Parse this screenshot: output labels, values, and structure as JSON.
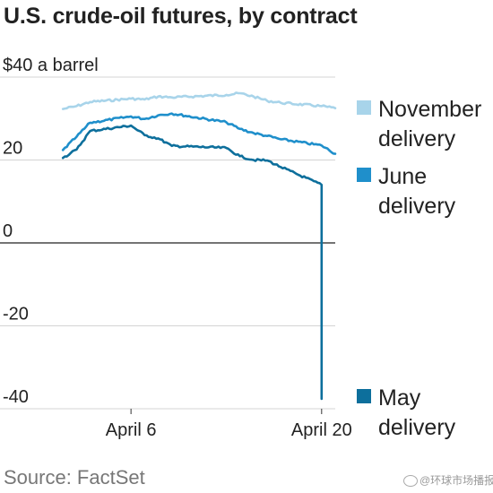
{
  "title": "U.S. crude-oil futures, by contract",
  "source": "Source: FactSet",
  "watermark": "@环球市场播报",
  "colors": {
    "november": "#a8d4ea",
    "june": "#1f8fcb",
    "may": "#0d6f9c",
    "grid": "#d4d4d4",
    "zero": "#222222",
    "text": "#222222",
    "source": "#777777"
  },
  "legend": [
    {
      "line1": "November",
      "line2": "delivery",
      "color": "#a8d4ea"
    },
    {
      "line1": "June",
      "line2": "delivery",
      "color": "#1f8fcb"
    },
    {
      "line1": "May",
      "line2": "delivery",
      "color": "#0d6f9c"
    }
  ],
  "chart_data": {
    "type": "line",
    "title": "U.S. crude-oil futures, by contract",
    "ylabel": "",
    "xlabel": "",
    "ylim": [
      -40,
      40
    ],
    "y_ticks": [
      40,
      20,
      0,
      -20,
      -40
    ],
    "y_tick_labels": [
      "$40 a barrel",
      "20",
      "0",
      "-20",
      "-40"
    ],
    "x_ticks": [
      "2020-04-06",
      "2020-04-20"
    ],
    "x_tick_labels": [
      "April 6",
      "April 20"
    ],
    "xlim": [
      "2020-03-31",
      "2020-04-21"
    ],
    "grid": true,
    "legend_position": "right",
    "series": [
      {
        "name": "November delivery",
        "x": [
          "2020-04-01",
          "2020-04-02",
          "2020-04-03",
          "2020-04-06",
          "2020-04-07",
          "2020-04-08",
          "2020-04-09",
          "2020-04-13",
          "2020-04-14",
          "2020-04-15",
          "2020-04-16",
          "2020-04-17",
          "2020-04-20",
          "2020-04-21"
        ],
        "y": [
          32.3,
          33.0,
          34.0,
          34.8,
          34.6,
          35.3,
          35.1,
          35.7,
          36.1,
          35.3,
          34.3,
          33.8,
          33.0,
          32.5
        ]
      },
      {
        "name": "June delivery",
        "x": [
          "2020-04-01",
          "2020-04-02",
          "2020-04-03",
          "2020-04-06",
          "2020-04-07",
          "2020-04-08",
          "2020-04-09",
          "2020-04-13",
          "2020-04-14",
          "2020-04-15",
          "2020-04-16",
          "2020-04-17",
          "2020-04-20",
          "2020-04-21"
        ],
        "y": [
          22.4,
          25.6,
          29.0,
          30.5,
          29.9,
          30.8,
          31.2,
          29.1,
          27.5,
          26.5,
          25.8,
          25.0,
          23.5,
          21.5
        ]
      },
      {
        "name": "May delivery",
        "x": [
          "2020-04-01",
          "2020-04-02",
          "2020-04-03",
          "2020-04-06",
          "2020-04-07",
          "2020-04-08",
          "2020-04-09",
          "2020-04-13",
          "2020-04-14",
          "2020-04-15",
          "2020-04-16",
          "2020-04-17",
          "2020-04-20",
          "2020-04-20",
          "2020-04-20",
          "2020-04-20"
        ],
        "y": [
          20.5,
          22.5,
          27.0,
          28.3,
          26.0,
          25.2,
          23.4,
          22.9,
          20.9,
          20.0,
          19.9,
          18.3,
          14.0,
          10.0,
          0.0,
          -37.6
        ]
      }
    ]
  }
}
